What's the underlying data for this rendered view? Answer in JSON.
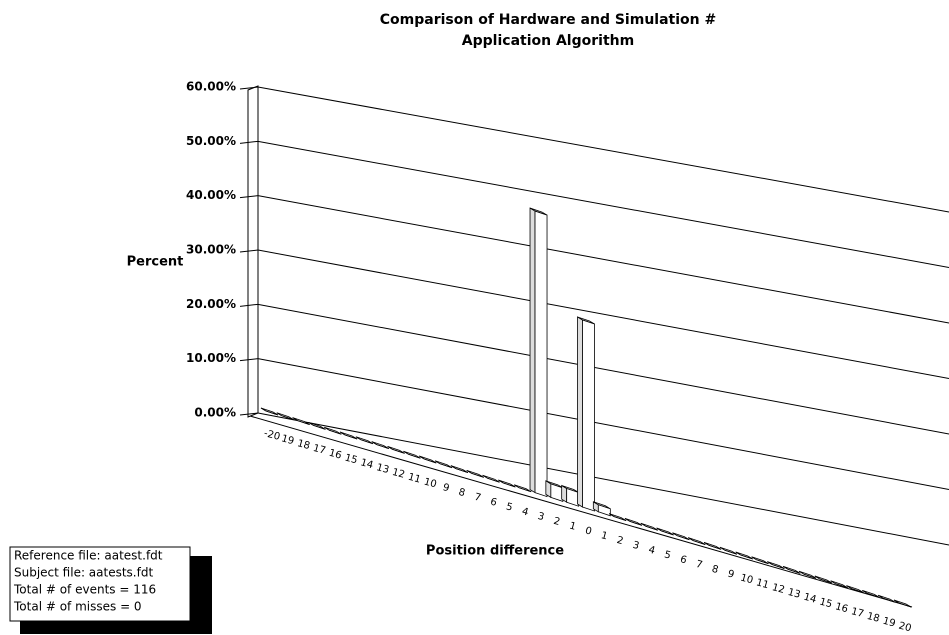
{
  "chart_data": {
    "type": "bar3d",
    "title": [
      "Comparison of Hardware and Simulation #",
      "Application Algorithm"
    ],
    "y_label": "Percent",
    "x_label": "Position difference",
    "categories": [
      "-20",
      "19",
      "18",
      "17",
      "16",
      "15",
      "14",
      "13",
      "12",
      "11",
      "10",
      "9",
      "8",
      "7",
      "6",
      "5",
      "4",
      "3",
      "2",
      "1",
      "0",
      "1",
      "2",
      "3",
      "4",
      "5",
      "6",
      "7",
      "8",
      "9",
      "10",
      "11",
      "12",
      "13",
      "14",
      "15",
      "16",
      "17",
      "18",
      "19",
      "20"
    ],
    "values": [
      0,
      0,
      0,
      0,
      0,
      0,
      0,
      0,
      0,
      0,
      0,
      0,
      0,
      0,
      0,
      0,
      0,
      42,
      2,
      2,
      27,
      1,
      0,
      0,
      0,
      0,
      0,
      0,
      0,
      0,
      0,
      0,
      0,
      0,
      0,
      0,
      0,
      0,
      0,
      0,
      0
    ],
    "color": "#ffffff",
    "ylim": [
      0,
      60
    ],
    "yticks": [
      {
        "value": 0,
        "label": "0.00%"
      },
      {
        "value": 10,
        "label": "10.00%"
      },
      {
        "value": 20,
        "label": "20.00%"
      },
      {
        "value": 30,
        "label": "30.00%"
      },
      {
        "value": 40,
        "label": "40.00%"
      },
      {
        "value": 50,
        "label": "50.00%"
      },
      {
        "value": 60,
        "label": "60.00%"
      }
    ],
    "grid": true
  },
  "notes": [
    "Reference file: aatest.fdt",
    "Subject file: aatests.fdt",
    "Total # of events = 116",
    "Total # of misses = 0"
  ]
}
